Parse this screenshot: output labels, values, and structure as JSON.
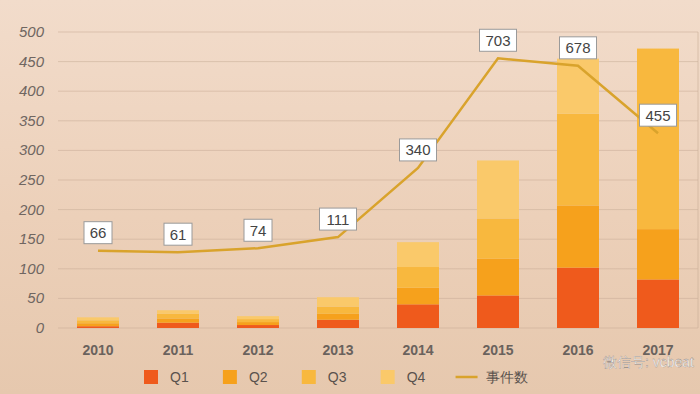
{
  "chart_data": {
    "type": "bar",
    "stacked": true,
    "categories": [
      "2010",
      "2011",
      "2012",
      "2013",
      "2014",
      "2015",
      "2016",
      "2017"
    ],
    "series": [
      {
        "name": "Q1",
        "color": "#ef5a1c",
        "values": [
          3,
          9,
          5,
          14,
          40,
          55,
          102,
          82
        ]
      },
      {
        "name": "Q2",
        "color": "#f6a11c",
        "values": [
          5,
          7,
          5,
          10,
          28,
          62,
          105,
          85
        ]
      },
      {
        "name": "Q3",
        "color": "#f8b83e",
        "values": [
          5,
          8,
          5,
          12,
          35,
          68,
          155,
          305
        ]
      },
      {
        "name": "Q4",
        "color": "#fac96a",
        "values": [
          5,
          6,
          5,
          16,
          42,
          98,
          93,
          0
        ]
      },
      {
        "name": "事件数",
        "type": "line",
        "axis": "y2",
        "color": "#d9a32c",
        "data_labels": true,
        "values": [
          66,
          61,
          74,
          111,
          340,
          703,
          678,
          455
        ]
      }
    ],
    "ylim": [
      0,
      500
    ],
    "yticks": [
      0,
      50,
      100,
      150,
      200,
      250,
      300,
      350,
      400,
      450,
      500
    ],
    "y2lim": [
      -190,
      790
    ],
    "grid": true,
    "legend": "bottom",
    "annotations": [
      "微信号: vcbeat"
    ]
  }
}
